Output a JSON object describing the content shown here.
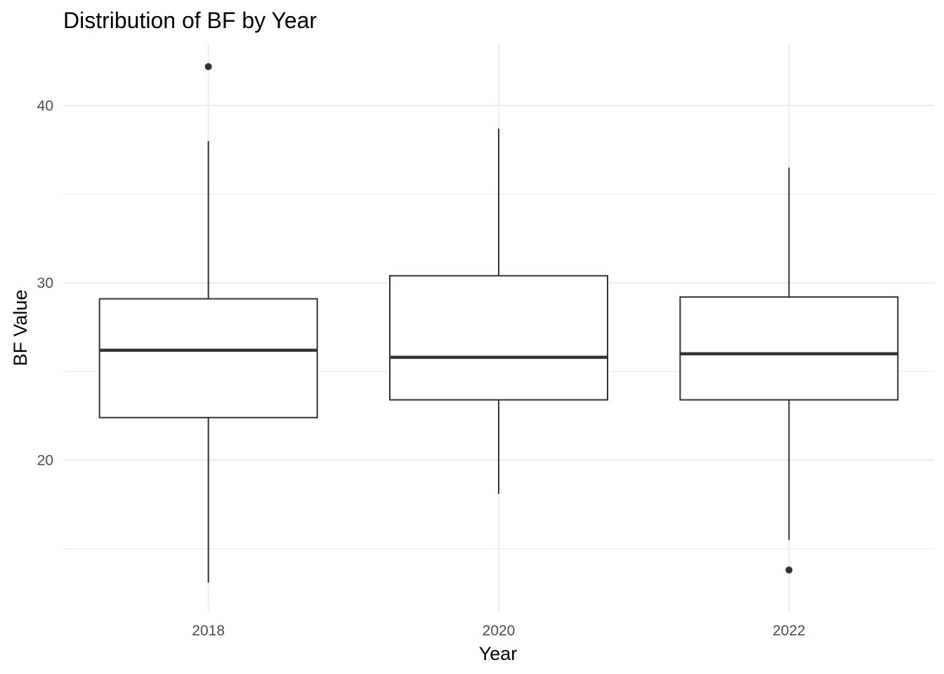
{
  "chart_data": {
    "type": "boxplot",
    "title": "Distribution of BF by Year",
    "xlabel": "Year",
    "ylabel": "BF Value",
    "ylim": [
      11.5,
      43.5
    ],
    "y_ticks": [
      20,
      30,
      40
    ],
    "grid": true,
    "categories": [
      "2018",
      "2020",
      "2022"
    ],
    "boxes": [
      {
        "category": "2018",
        "whisker_low": 13.1,
        "q1": 22.4,
        "median": 26.2,
        "q3": 29.1,
        "whisker_high": 38.0,
        "outliers": [
          42.2
        ]
      },
      {
        "category": "2020",
        "whisker_low": 18.1,
        "q1": 23.4,
        "median": 25.8,
        "q3": 30.4,
        "whisker_high": 38.7,
        "outliers": []
      },
      {
        "category": "2022",
        "whisker_low": 15.5,
        "q1": 23.4,
        "median": 26.0,
        "q3": 29.2,
        "whisker_high": 36.5,
        "outliers": [
          13.8
        ]
      }
    ],
    "colors": {
      "box_stroke": "#333333",
      "box_fill": "#ffffff",
      "grid": "#ebebeb",
      "tick_text": "#4d4d4d"
    }
  }
}
